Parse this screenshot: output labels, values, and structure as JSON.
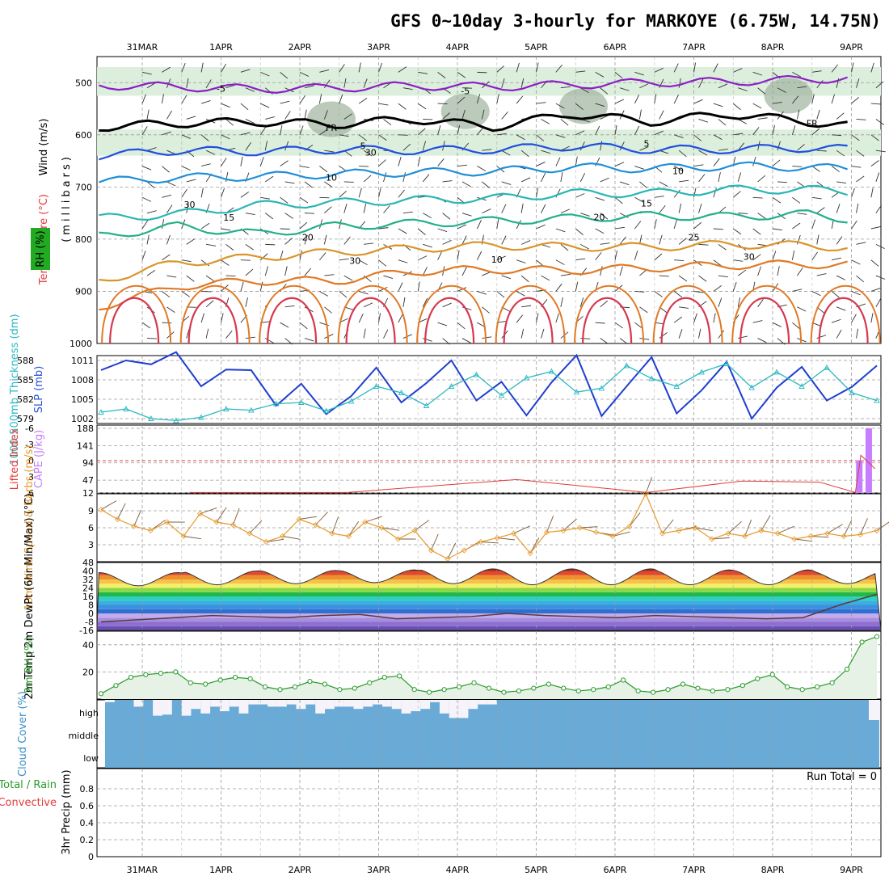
{
  "title": "GFS 0~10day 3-hourly for MARKOYE (6.75W, 14.75N)",
  "date_labels": [
    "31MAR",
    "1APR",
    "2APR",
    "3APR",
    "4APR",
    "5APR",
    "6APR",
    "7APR",
    "8APR",
    "9APR"
  ],
  "colors": {
    "rh_fill": "#dceedc",
    "rh_dark": "#9fb49f",
    "slp": "#1f3fcf",
    "thickness": "#2ab9c2",
    "cape": "#c77dff",
    "lifted_index": "#e23b3b",
    "wind_speed": "#e69a2e",
    "rh2m": "#2a9a2a",
    "cloud": "#6aaad6",
    "precip_total": "#2a9a2a",
    "precip_conv": "#e23b3b"
  },
  "chart_data": [
    {
      "type": "contour",
      "panel": "upper-air",
      "ylabel_parts": [
        "RH (%)",
        "Temperature (°C)",
        "Wind (m/s)"
      ],
      "yaxis_title": "(millibars)",
      "yticks": [
        500,
        600,
        700,
        800,
        900,
        1000
      ],
      "ylim": [
        450,
        1000
      ],
      "temperature_contour_labels": [
        "-5",
        "-5",
        "FR",
        "FR",
        "5",
        "5",
        "10",
        "10",
        "15",
        "15",
        "20",
        "20",
        "25",
        "30",
        "30"
      ],
      "rh_contour_labels": [
        "30",
        "30",
        "10"
      ],
      "isotherms": [
        {
          "label": "-5",
          "color": "#8a1fc6",
          "p": [
            505,
            508,
            512,
            510,
            506,
            508,
            504,
            500,
            498,
            494,
            488
          ]
        },
        {
          "label": "FR",
          "color": "#000000",
          "p": [
            585,
            578,
            575,
            580,
            570,
            585,
            560,
            575,
            560,
            575,
            590
          ]
        },
        {
          "label": "5",
          "color": "#1f4fe0",
          "p": [
            640,
            630,
            632,
            628,
            630,
            628,
            622,
            628,
            628,
            625,
            630
          ]
        },
        {
          "label": "10",
          "color": "#1f8fd8",
          "p": [
            690,
            682,
            680,
            675,
            672,
            670,
            662,
            665,
            660,
            662,
            670
          ]
        },
        {
          "label": "15",
          "color": "#2ab5b5",
          "p": [
            760,
            752,
            735,
            730,
            725,
            722,
            712,
            712,
            705,
            705,
            712
          ]
        },
        {
          "label": "20",
          "color": "#22b08a",
          "p": [
            795,
            775,
            790,
            775,
            770,
            765,
            760,
            755,
            757,
            752,
            770
          ]
        },
        {
          "label": "25",
          "color": "#d9952a",
          "p": [
            880,
            845,
            835,
            825,
            818,
            812,
            815,
            815,
            810,
            812,
            820
          ]
        },
        {
          "label": "30",
          "color": "#e07a25",
          "p": [
            930,
            890,
            880,
            880,
            862,
            858,
            860,
            855,
            850,
            848,
            850
          ]
        }
      ]
    },
    {
      "type": "line",
      "panel": "slp-thickness",
      "ylabel_left": "1000-500mb Thickness (dm)",
      "ylabel_right": "SLP (mb)",
      "left_ticks": [
        579,
        582,
        585,
        588
      ],
      "right_ticks": [
        1002,
        1005,
        1008,
        1011
      ],
      "series": [
        {
          "name": "SLP (mb)",
          "axis": "right",
          "values": [
            1009.5,
            1011.0,
            1010.4,
            1012.3,
            1007.0,
            1009.6,
            1009.5,
            1004.0,
            1007.4,
            1002.7,
            1005.5,
            1009.9,
            1004.5,
            1007.5,
            1011.0,
            1004.8,
            1007.7,
            1002.5,
            1007.6,
            1011.8,
            1002.4,
            1007.0,
            1011.5,
            1002.8,
            1006.4,
            1010.8,
            1002.0,
            1006.8,
            1010.0,
            1004.8,
            1006.9,
            1010.2
          ]
        },
        {
          "name": "1000-500mb Thickness (dm)",
          "axis": "left",
          "values": [
            580.0,
            580.5,
            579.0,
            578.7,
            579.2,
            580.5,
            580.3,
            581.3,
            581.5,
            580.2,
            581.7,
            584.0,
            583.0,
            581.0,
            584.0,
            585.8,
            582.6,
            585.3,
            586.3,
            583.1,
            583.7,
            587.2,
            585.2,
            584.0,
            586.2,
            587.5,
            583.8,
            586.2,
            584.0,
            586.9,
            583.0,
            581.8
          ]
        }
      ]
    },
    {
      "type": "bar",
      "panel": "cape-lifted-index",
      "ylabel_left": "Lifted Index",
      "ylabel_right": "CAPE (J/kg)",
      "left_ticks": [
        6,
        3,
        0,
        -3,
        -6
      ],
      "right_ticks": [
        12,
        47,
        94,
        141,
        188
      ],
      "cape_bars": [
        {
          "day": 9.1,
          "value": 101
        },
        {
          "day": 9.22,
          "value": 188
        }
      ],
      "lifted_index_points": [
        [
          0.6,
          5.9
        ],
        [
          2.6,
          5.9
        ],
        [
          4.75,
          3.5
        ],
        [
          6.4,
          5.9
        ],
        [
          7.6,
          3.8
        ],
        [
          7.75,
          3.8
        ],
        [
          8.6,
          4.0
        ],
        [
          9.05,
          5.9
        ],
        [
          9.12,
          -1.0
        ],
        [
          9.3,
          1.5
        ]
      ]
    },
    {
      "type": "line",
      "panel": "wind10m",
      "ylabel": "10m Wind Speed & Barbs (m/s)",
      "yticks": [
        3,
        6,
        9
      ],
      "ylim": [
        0,
        12
      ],
      "series": [
        {
          "name": "10m Wind Speed",
          "values": [
            9.2,
            7.5,
            6.3,
            5.5,
            7.0,
            4.5,
            8.5,
            7.0,
            6.5,
            5.0,
            3.5,
            4.5,
            7.5,
            6.5,
            5.0,
            4.5,
            7.0,
            6.0,
            4.0,
            5.5,
            2.0,
            0.5,
            2.0,
            3.5,
            4.2,
            5.0,
            1.5,
            5.2,
            5.5,
            6.0,
            5.2,
            4.5,
            6.2,
            12.0,
            5.0,
            5.5,
            6.0,
            4.0,
            5.0,
            4.5,
            5.5,
            5.0,
            4.0,
            4.5,
            5.0,
            4.5,
            4.8,
            5.5
          ]
        }
      ]
    },
    {
      "type": "area",
      "panel": "temperature",
      "ylabel": "2m Temp 2m DewPt (6hr Min/Max) (°C)",
      "yticks": [
        -16,
        -8,
        0,
        8,
        16,
        24,
        32,
        40,
        48
      ],
      "ylim": [
        -16,
        48
      ],
      "daily_max_temperature": [
        38.5,
        40.0,
        40.5,
        41.0,
        42.0,
        42.0,
        42.0,
        41.0,
        41.0,
        40.0
      ],
      "daily_min_temperature": [
        26.0,
        27.0,
        28.0,
        29.0,
        28.0,
        27.0,
        27.0,
        27.0,
        27.0,
        28.0
      ],
      "dewpoint": [
        -8.0,
        -6.0,
        -4.0,
        -2.0,
        -3.0,
        -4.0,
        -2.0,
        -1.0,
        -5.0,
        -4.0,
        -3.0,
        0.0,
        -2.0,
        -3.0,
        -4.0,
        -2.0,
        -3.0,
        -4.0,
        -5.0,
        -4.0,
        8.0,
        18.0
      ]
    },
    {
      "type": "line",
      "panel": "rh2m",
      "ylabel": "2m RH (%)",
      "yticks": [
        20,
        40
      ],
      "ylim": [
        0,
        50
      ],
      "series": [
        {
          "name": "2m RH",
          "values": [
            4,
            10,
            16,
            18,
            19,
            20,
            12,
            11,
            14,
            16,
            15,
            9,
            7,
            9,
            13,
            11,
            7,
            8,
            12,
            16,
            17,
            7,
            5,
            7,
            9,
            12,
            8,
            5,
            6,
            8,
            11,
            8,
            6,
            7,
            9,
            14,
            6,
            5,
            7,
            11,
            8,
            6,
            7,
            10,
            15,
            18,
            9,
            7,
            9,
            12,
            22,
            42,
            46
          ]
        }
      ]
    },
    {
      "type": "bar",
      "panel": "cloud",
      "ylabel": "Cloud Cover (%)",
      "layer_labels": [
        "high",
        "middle",
        "low"
      ],
      "high_cloud_gap_percent": [
        10,
        0,
        0,
        30,
        0,
        70,
        65,
        0,
        70,
        40,
        60,
        30,
        50,
        30,
        60,
        20,
        20,
        30,
        30,
        20,
        40,
        20,
        60,
        40,
        30,
        30,
        40,
        30,
        20,
        30,
        40,
        60,
        50,
        40,
        10,
        60,
        80,
        80,
        40,
        20,
        20,
        0,
        0,
        0,
        0,
        0,
        0,
        0,
        0,
        0,
        0,
        0,
        0,
        0,
        0,
        0,
        0,
        0,
        0,
        0,
        0,
        0,
        0,
        0,
        0,
        0,
        0,
        0,
        0,
        0,
        0,
        0,
        0,
        0,
        0,
        0,
        0,
        0,
        0,
        0,
        0
      ]
    },
    {
      "type": "bar",
      "panel": "precip",
      "ylabel_parts": [
        "Total / Rain",
        "Convective",
        "3hr Precip (mm)"
      ],
      "yticks": [
        0,
        0.2,
        0.4,
        0.6,
        0.8
      ],
      "ylim": [
        0,
        1.0
      ],
      "run_total_text": "Run Total = 0",
      "values": []
    }
  ]
}
